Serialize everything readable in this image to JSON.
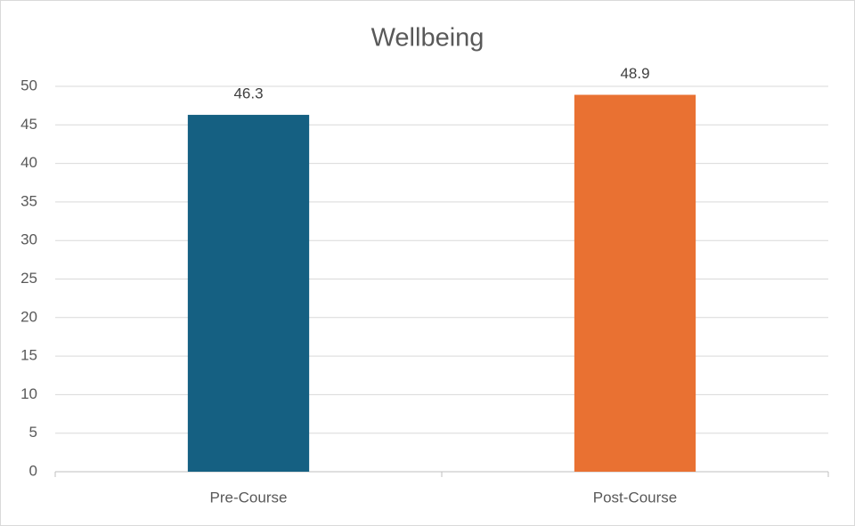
{
  "chart_data": {
    "type": "bar",
    "title": "Wellbeing",
    "categories": [
      "Pre-Course",
      "Post-Course"
    ],
    "values": [
      46.3,
      48.9
    ],
    "colors": [
      "#156082",
      "#e97132"
    ],
    "ylim": [
      0,
      50
    ],
    "yticks": [
      0,
      5,
      10,
      15,
      20,
      25,
      30,
      35,
      40,
      45,
      50
    ],
    "grid": true
  }
}
